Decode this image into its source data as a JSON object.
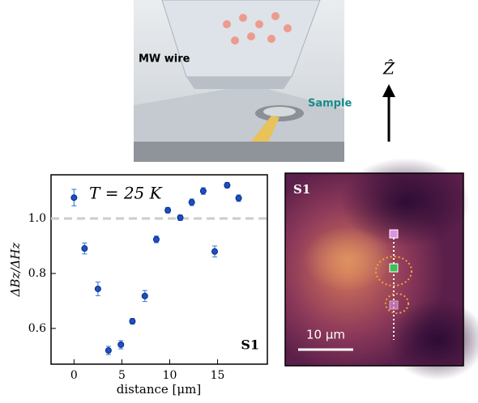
{
  "illustration": {
    "wire_label": "MW wire",
    "sample_label": "Sample",
    "axis_label": "Ẑ"
  },
  "chart_data": {
    "type": "scatter",
    "x": [
      0,
      1.1,
      2.5,
      3.6,
      4.9,
      6.1,
      7.4,
      8.6,
      9.8,
      11.1,
      12.3,
      13.5,
      14.7,
      16.0,
      17.2
    ],
    "series": [
      {
        "name": "S1",
        "color": "#1f4fc4",
        "values": [
          1.076,
          0.891,
          0.744,
          0.52,
          0.541,
          0.626,
          0.718,
          0.924,
          1.03,
          1.003,
          1.059,
          1.1,
          0.88,
          1.121,
          1.074
        ],
        "errors": [
          0.03,
          0.02,
          0.025,
          0.015,
          0.015,
          0.01,
          0.02,
          0.012,
          0.01,
          0.01,
          0.012,
          0.012,
          0.02,
          0.01,
          0.012
        ]
      }
    ],
    "xlim": [
      -2.4,
      20.2
    ],
    "ylim": [
      0.47,
      1.159
    ],
    "xticks": [
      0,
      5,
      10,
      15
    ],
    "yticks": [
      0.6,
      0.8,
      {
        "value": 1,
        "label": "1.0"
      }
    ],
    "reference_line": 1,
    "xlabel": "distance [μm]",
    "ylabel": "ΔBz/ΔHz",
    "annotation": "T = 25 K",
    "panel_label": "S1"
  },
  "image": {
    "panel_label": "S1",
    "scale_label": "10 μm"
  }
}
